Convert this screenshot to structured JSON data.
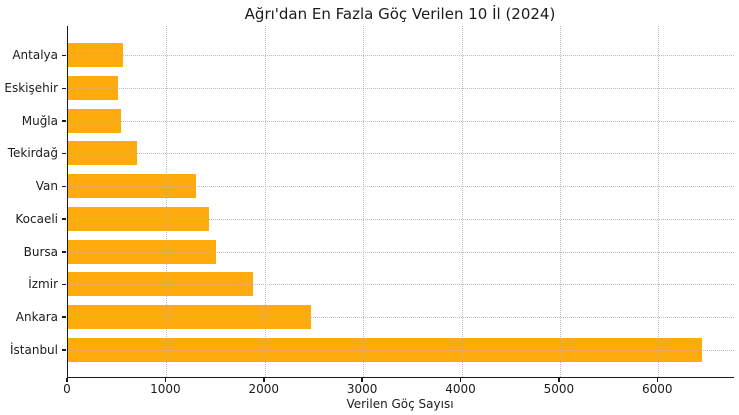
{
  "figure": {
    "background": "#ffffff"
  },
  "chart_data": {
    "type": "bar",
    "orientation": "horizontal",
    "title": "Ağrı'dan En Fazla Göç Verilen 10 İl (2024)",
    "xlabel": "Verilen Göç Sayısı",
    "ylabel": "",
    "categories": [
      "Antalya",
      "Eskişehir",
      "Muğla",
      "Tekirdağ",
      "Van",
      "Kocaeli",
      "Bursa",
      "İzmir",
      "Ankara",
      "İstanbul"
    ],
    "values": [
      555,
      505,
      540,
      700,
      1305,
      1435,
      1500,
      1885,
      2470,
      6440
    ],
    "x_ticks": [
      0,
      1000,
      2000,
      3000,
      4000,
      5000,
      6000
    ],
    "xlim": [
      0,
      6770
    ],
    "bar_color": "#FFAB0D",
    "grid": true,
    "grid_style": "dotted",
    "grid_color": "#afafaf",
    "axis_color": "#1a1a1a",
    "legend": "none"
  }
}
